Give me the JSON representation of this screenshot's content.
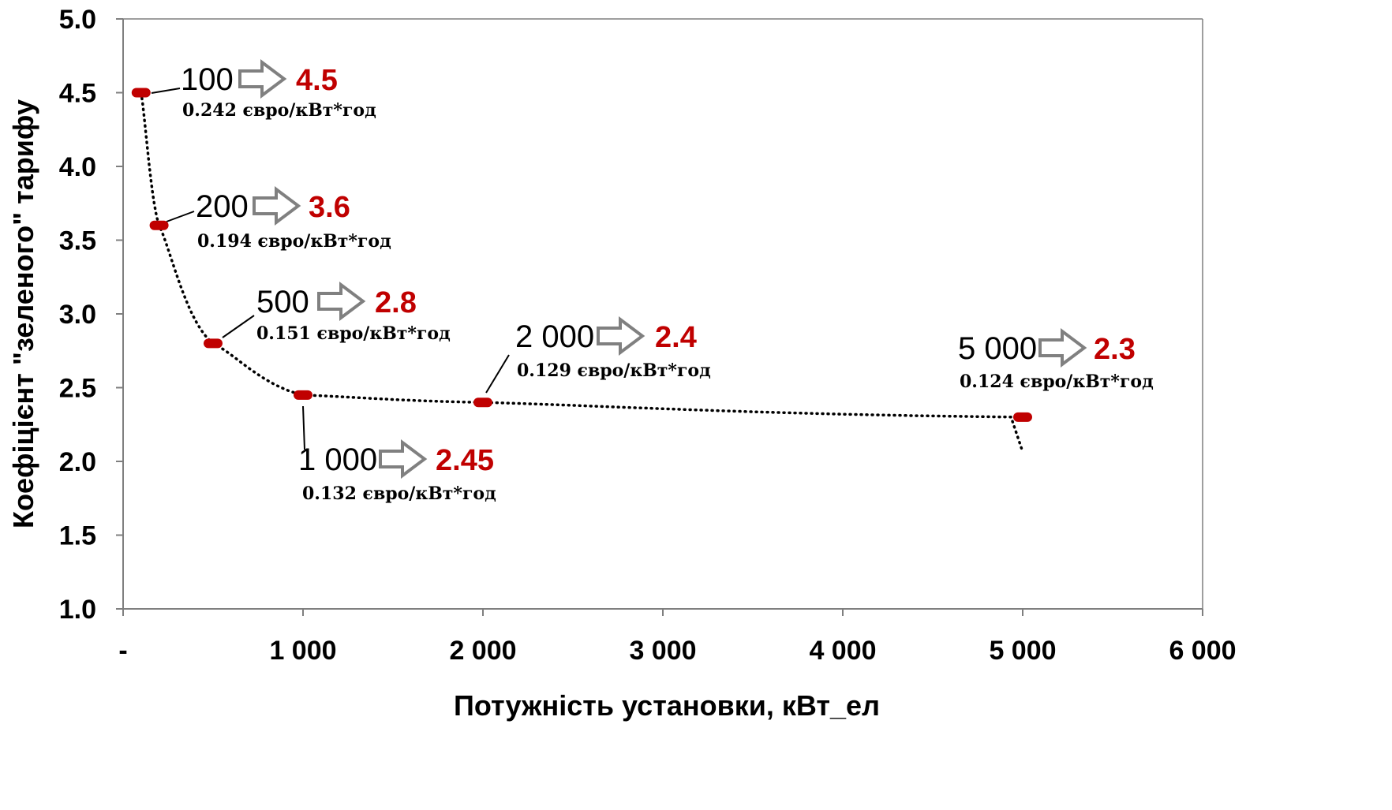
{
  "chart_data": {
    "type": "scatter",
    "xlabel": "Потужність установки, кВт_ел",
    "ylabel": "Коефіцієнт \"зеленого\" тарифу",
    "xlim": [
      0,
      6000
    ],
    "ylim": [
      1.0,
      5.0
    ],
    "x_ticks": [
      {
        "value": 0,
        "label": "-"
      },
      {
        "value": 1000,
        "label": "1 000"
      },
      {
        "value": 2000,
        "label": "2 000"
      },
      {
        "value": 3000,
        "label": "3 000"
      },
      {
        "value": 4000,
        "label": "4 000"
      },
      {
        "value": 5000,
        "label": "5 000"
      },
      {
        "value": 6000,
        "label": "6 000"
      }
    ],
    "y_ticks": [
      {
        "value": 5.0,
        "label": "5.0"
      },
      {
        "value": 4.5,
        "label": "4.5"
      },
      {
        "value": 4.0,
        "label": "4.0"
      },
      {
        "value": 3.5,
        "label": "3.5"
      },
      {
        "value": 3.0,
        "label": "3.0"
      },
      {
        "value": 2.5,
        "label": "2.5"
      },
      {
        "value": 2.0,
        "label": "2.0"
      },
      {
        "value": 1.5,
        "label": "1.5"
      },
      {
        "value": 1.0,
        "label": "1.0"
      }
    ],
    "points": [
      {
        "x": 100,
        "y": 4.5,
        "capacity_label": "100",
        "coef_label": "4.5",
        "price_label": "0.242 євро/кВт*год"
      },
      {
        "x": 200,
        "y": 3.6,
        "capacity_label": "200",
        "coef_label": "3.6",
        "price_label": "0.194 євро/кВт*год"
      },
      {
        "x": 500,
        "y": 2.8,
        "capacity_label": "500",
        "coef_label": "2.8",
        "price_label": "0.151 євро/кВт*год"
      },
      {
        "x": 1000,
        "y": 2.45,
        "capacity_label": "1 000",
        "coef_label": "2.45",
        "price_label": "0.132 євро/кВт*год"
      },
      {
        "x": 2000,
        "y": 2.4,
        "capacity_label": "2 000",
        "coef_label": "2.4",
        "price_label": "0.129 євро/кВт*год"
      },
      {
        "x": 5000,
        "y": 2.3,
        "capacity_label": "5 000",
        "coef_label": "2.3",
        "price_label": "0.124 євро/кВт*год"
      }
    ],
    "grid": false,
    "trendline": "dotted"
  },
  "colors": {
    "marker": "#c00000",
    "coef_text": "#c00000",
    "arrow": "#808080",
    "trendline": "#000000",
    "axis": "#7f7f7f"
  }
}
